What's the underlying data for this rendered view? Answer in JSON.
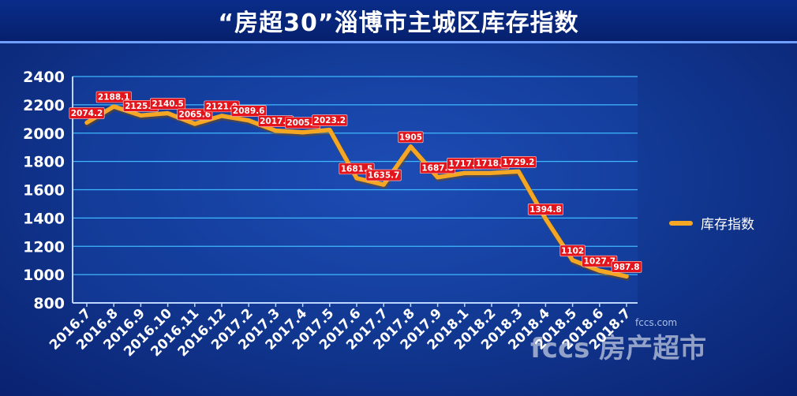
{
  "title": "“房超30”淄博市主城区库存指数",
  "watermark": {
    "brand": "fccs",
    "brand_cn": "房产超市",
    "url": "fccs.com"
  },
  "colors": {
    "line": "#f5a623",
    "label_bg": "#e3141b",
    "grid": "#3fb8ff",
    "axis": "#ffffff"
  },
  "chart_data": {
    "type": "line",
    "title": "“房超30”淄博市主城区库存指数",
    "xlabel": "",
    "ylabel": "",
    "ylim": [
      800,
      2400
    ],
    "yticks": [
      800,
      1000,
      1200,
      1400,
      1600,
      1800,
      2000,
      2200,
      2400
    ],
    "grid": true,
    "legend": "right",
    "categories": [
      "2016.7",
      "2016.8",
      "2016.9",
      "2016.10",
      "2016.11",
      "2016.12",
      "2017.2",
      "2017.3",
      "2017.4",
      "2017.5",
      "2017.6",
      "2017.7",
      "2017.8",
      "2017.9",
      "2018.1",
      "2018.2",
      "2018.3",
      "2018.4",
      "2018.5",
      "2018.6",
      "2018.7"
    ],
    "series": [
      {
        "name": "库存指数",
        "values": [
          2074.2,
          2188.1,
          2125.1,
          2140.5,
          2065.6,
          2121.9,
          2089.6,
          2017.3,
          2005.6,
          2023.2,
          1681.5,
          1635.7,
          1905,
          1687.8,
          1717.9,
          1718.8,
          1729.2,
          1394.8,
          1102,
          1027.7,
          987.8
        ],
        "labels": [
          "2074.2",
          "2188.1",
          "2125.1",
          "2140.5",
          "2065.6",
          "2121.9",
          "2089.6",
          "2017.3",
          "2005.6",
          "2023.2",
          "1681.5",
          "1635.7",
          "1905",
          "1687.8",
          "1717.9",
          "1718.8",
          "1729.2",
          "1394.8",
          "1102",
          "1027.7",
          "987.8"
        ]
      }
    ]
  }
}
